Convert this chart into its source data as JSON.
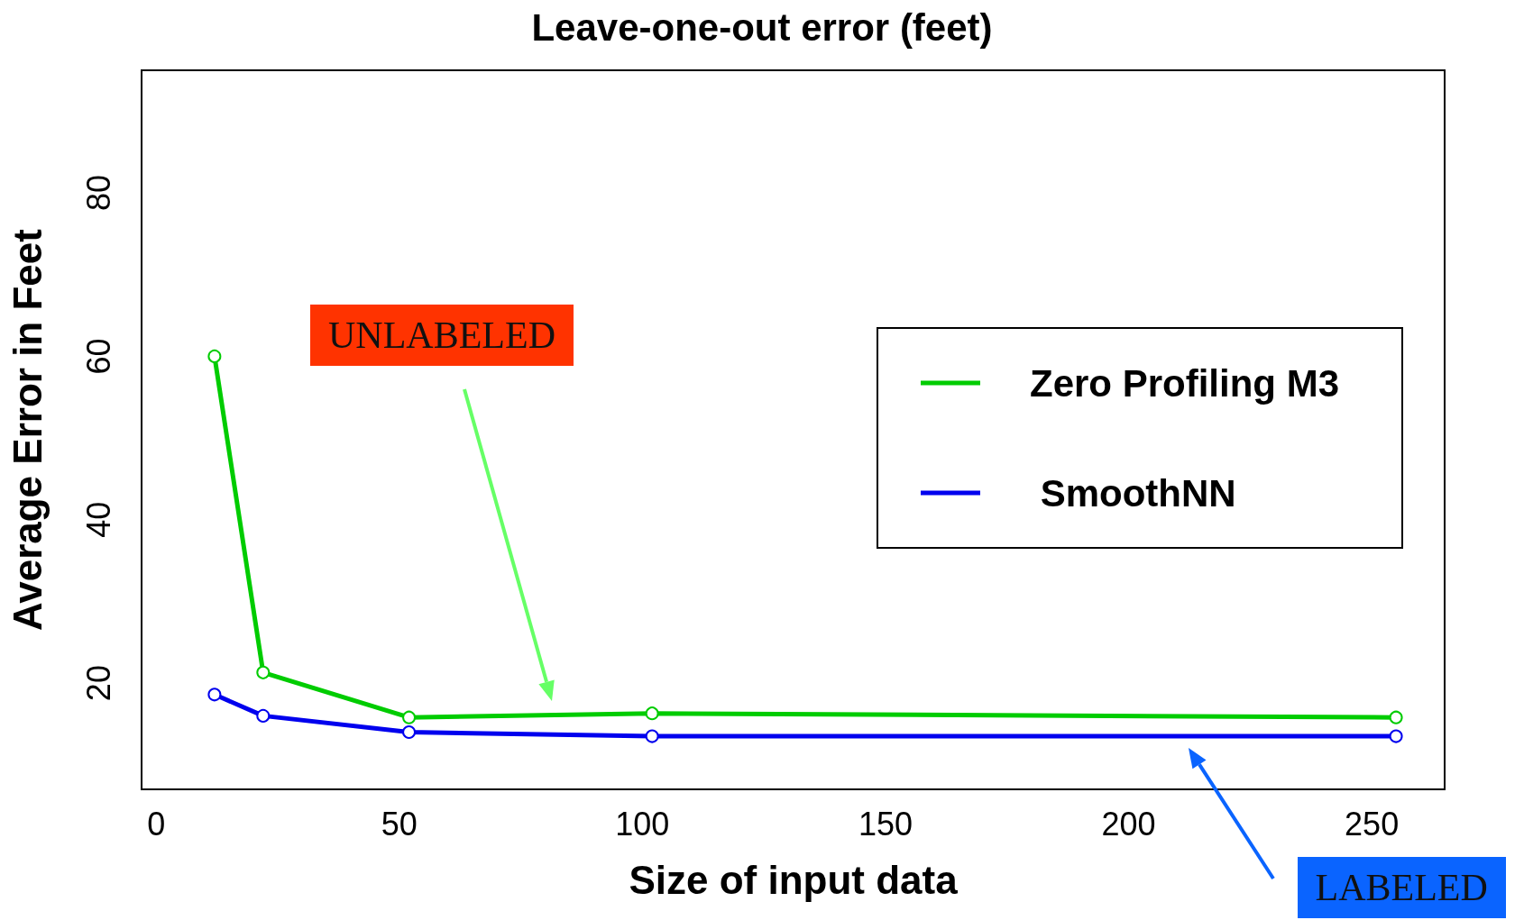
{
  "chart_data": {
    "type": "line",
    "title": "Leave-one-out error (feet)",
    "xlabel": "Size of input data",
    "ylabel": "Average Error in Feet",
    "x": [
      12,
      22,
      52,
      102,
      255
    ],
    "series": [
      {
        "name": "Zero Profiling M3",
        "color": "#00cc00",
        "values": [
          60,
          21.3,
          15.8,
          16.3,
          15.8
        ]
      },
      {
        "name": " SmoothNN",
        "color": "#0000ee",
        "values": [
          18.6,
          16,
          14,
          13.5,
          13.5
        ]
      }
    ],
    "xlim": [
      -3,
      265
    ],
    "xticks": [
      0,
      50,
      100,
      150,
      200,
      250
    ],
    "ylim": [
      7,
      95
    ],
    "yticks": [
      20,
      40,
      60,
      80
    ],
    "grid": false,
    "legend": "right",
    "marker": "circle",
    "line_style": "solid",
    "annotations": [
      "UNLABELED",
      "LABELED"
    ]
  }
}
